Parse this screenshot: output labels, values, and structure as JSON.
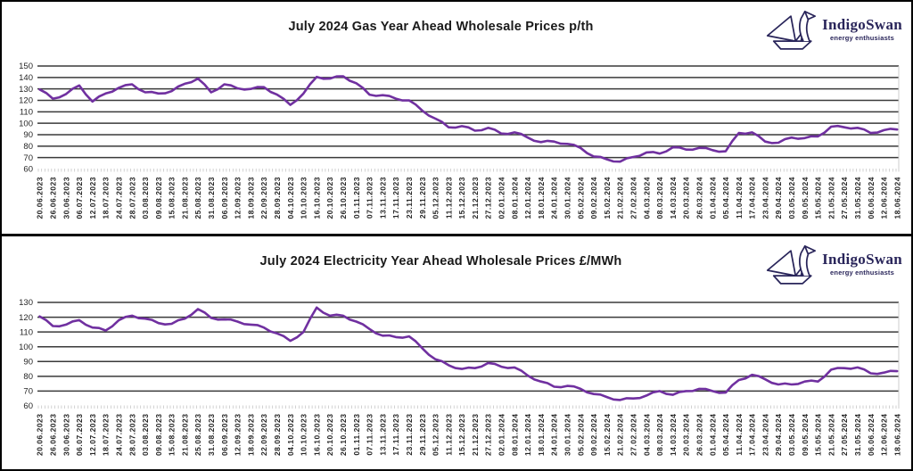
{
  "logo": {
    "name": "IndigoSwan",
    "tagline": "energy enthusiasts",
    "color": "#29255a"
  },
  "colors": {
    "line": "#7030A0",
    "grid": "#3a3a3a",
    "tick": "#bfbfbf",
    "axis_text": "#262626",
    "title_text": "#1a1a1a",
    "frame": "#000000",
    "background": "#ffffff"
  },
  "chart_data": [
    {
      "type": "line",
      "title": "July 2024 Gas Year Ahead Wholesale Prices p/th",
      "unit": "p/th",
      "legend": "none",
      "grid": "horizontal",
      "ylim": [
        60,
        150
      ],
      "y_ticks": [
        150,
        140,
        130,
        120,
        110,
        100,
        90,
        80,
        70,
        60
      ],
      "x_labels": [
        "20.06.2023",
        "26.06.2023",
        "30.06.2023",
        "06.07.2023",
        "12.07.2023",
        "18.07.2023",
        "24.07.2023",
        "28.07.2023",
        "03.08.2023",
        "09.08.2023",
        "15.08.2023",
        "21.08.2023",
        "25.08.2023",
        "31.08.2023",
        "06.09.2023",
        "12.09.2023",
        "18.09.2023",
        "22.09.2023",
        "28.09.2023",
        "04.10.2023",
        "10.10.2023",
        "16.10.2023",
        "20.10.2023",
        "26.10.2023",
        "01.11.2023",
        "07.11.2023",
        "13.11.2023",
        "17.11.2023",
        "23.11.2023",
        "29.11.2023",
        "05.12.2023",
        "11.12.2023",
        "15.12.2023",
        "21.12.2023",
        "27.12.2023",
        "02.01.2024",
        "08.01.2024",
        "12.01.2024",
        "18.01.2024",
        "24.01.2024",
        "30.01.2024",
        "05.02.2024",
        "09.02.2024",
        "15.02.2024",
        "21.02.2024",
        "27.02.2024",
        "04.03.2024",
        "08.03.2024",
        "14.03.2024",
        "20.03.2024",
        "26.03.2024",
        "01.04.2024",
        "05.04.2024",
        "11.04.2024",
        "17.04.2024",
        "23.04.2024",
        "29.04.2024",
        "03.05.2024",
        "09.05.2024",
        "15.05.2024",
        "21.05.2024",
        "27.05.2024",
        "31.05.2024",
        "06.06.2024",
        "12.06.2024",
        "18.06.2024"
      ],
      "values": [
        129.5,
        121.5,
        125.5,
        133,
        119,
        126,
        131,
        134,
        127,
        126,
        128,
        134.5,
        139,
        127,
        134,
        130.5,
        130,
        131.5,
        125,
        116,
        126,
        140.5,
        139,
        141,
        135,
        125,
        124.5,
        121.5,
        120,
        111,
        104,
        96.5,
        97.5,
        93.5,
        96,
        91,
        92,
        87.5,
        83.5,
        84,
        82,
        78.5,
        71,
        68.5,
        66.5,
        70.5,
        74.5,
        73.5,
        79,
        77,
        78.5,
        76.5,
        75.5,
        91.5,
        92,
        84,
        83,
        87.5,
        87,
        88.5,
        97,
        96.5,
        96,
        91.5,
        94,
        94.5
      ]
    },
    {
      "type": "line",
      "title": "July 2024 Electricity Year Ahead Wholesale Prices £/MWh",
      "unit": "£/MWh",
      "legend": "none",
      "grid": "horizontal",
      "ylim": [
        60,
        130
      ],
      "y_ticks": [
        130,
        120,
        110,
        100,
        90,
        80,
        70,
        60
      ],
      "x_labels": [
        "20.06.2023",
        "26.06.2023",
        "30.06.2023",
        "06.07.2023",
        "12.07.2023",
        "18.07.2023",
        "24.07.2023",
        "28.07.2023",
        "03.08.2023",
        "09.08.2023",
        "15.08.2023",
        "21.08.2023",
        "25.08.2023",
        "31.08.2023",
        "06.09.2023",
        "12.09.2023",
        "18.09.2023",
        "22.09.2023",
        "28.09.2023",
        "04.10.2023",
        "10.10.2023",
        "16.10.2023",
        "20.10.2023",
        "26.10.2023",
        "01.11.2023",
        "07.11.2023",
        "13.11.2023",
        "17.11.2023",
        "23.11.2023",
        "29.11.2023",
        "05.12.2023",
        "11.12.2023",
        "15.12.2023",
        "21.12.2023",
        "27.12.2023",
        "02.01.2024",
        "08.01.2024",
        "12.01.2024",
        "18.01.2024",
        "24.01.2024",
        "30.01.2024",
        "05.02.2024",
        "09.02.2024",
        "15.02.2024",
        "21.02.2024",
        "27.02.2024",
        "04.03.2024",
        "08.03.2024",
        "14.03.2024",
        "20.03.2024",
        "26.03.2024",
        "01.04.2024",
        "05.04.2024",
        "11.04.2024",
        "17.04.2024",
        "23.04.2024",
        "29.04.2024",
        "03.05.2024",
        "09.05.2024",
        "15.05.2024",
        "21.05.2024",
        "27.05.2024",
        "31.05.2024",
        "06.06.2024",
        "12.06.2024",
        "18.06.2024"
      ],
      "values": [
        120.5,
        114,
        115,
        118,
        113,
        111,
        118,
        121,
        119,
        116,
        115.5,
        119,
        125.5,
        119.5,
        118.5,
        117,
        115,
        113,
        109,
        104,
        110,
        126.5,
        121,
        121,
        117,
        112,
        107.5,
        106.5,
        107,
        99,
        91.5,
        87.5,
        85,
        85.5,
        89,
        86.5,
        86,
        80.5,
        76.5,
        73,
        73.5,
        71.5,
        68,
        66,
        64,
        65,
        67,
        70,
        67.5,
        70,
        71.5,
        70,
        69,
        77.5,
        81,
        78,
        74.5,
        74.5,
        76.5,
        76.5,
        84.5,
        85.5,
        86,
        82,
        82.5,
        83.5
      ]
    }
  ]
}
